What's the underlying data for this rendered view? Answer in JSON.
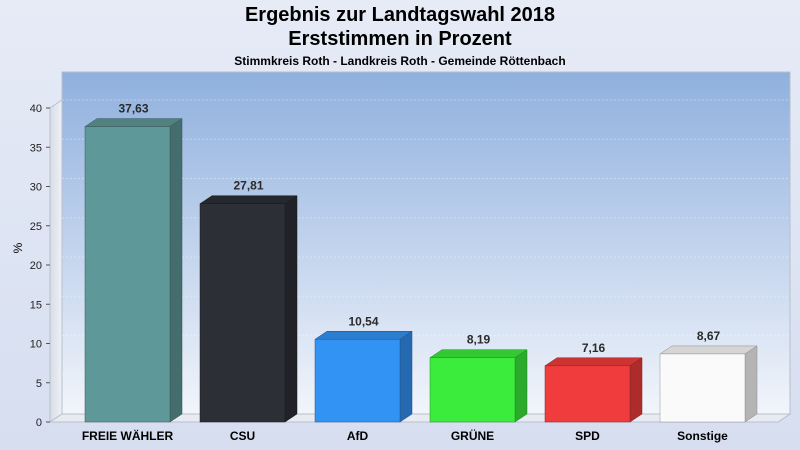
{
  "title": "Ergebnis zur Landtagswahl 2018",
  "subtitle": "Erststimmen in Prozent",
  "subsubtitle": "Stimmkreis Roth - Landkreis Roth - Gemeinde Röttenbach",
  "chart_data": {
    "type": "bar",
    "ylabel": "%",
    "ylim": [
      0,
      40
    ],
    "yticks": [
      0,
      5,
      10,
      15,
      20,
      25,
      30,
      35,
      40
    ],
    "categories": [
      "FREIE WÄHLER",
      "CSU",
      "AfD",
      "GRÜNE",
      "SPD",
      "Sonstige"
    ],
    "values": [
      37.63,
      27.81,
      10.54,
      8.19,
      7.16,
      8.67
    ],
    "value_labels": [
      "37,63",
      "27,81",
      "10,54",
      "8,19",
      "7,16",
      "8,67"
    ],
    "colors": [
      "#5f9898",
      "#2c2f36",
      "#3393f5",
      "#3cec3c",
      "#f03c3c",
      "#fafafa"
    ],
    "grid": true
  }
}
